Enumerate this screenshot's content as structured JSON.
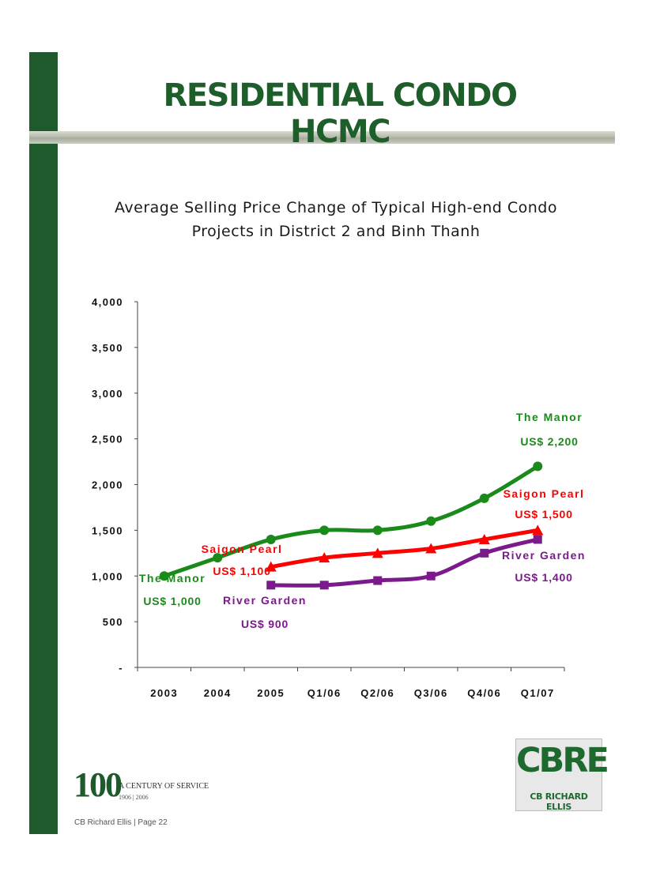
{
  "slide": {
    "title": "RESIDENTIAL CONDO HCMC"
  },
  "chart_data": {
    "type": "line",
    "title_line1": "Average Selling Price Change of Typical High-end Condo",
    "title_line2": "Projects in District 2 and Binh Thanh",
    "categories": [
      "2003",
      "2004",
      "2005",
      "Q1/06",
      "Q2/06",
      "Q3/06",
      "Q4/06",
      "Q1/07"
    ],
    "ylim": [
      0,
      4000
    ],
    "yticks": [
      0,
      500,
      1000,
      1500,
      2000,
      2500,
      3000,
      3500,
      4000
    ],
    "ytick_labels": [
      "-",
      "500",
      "1,000",
      "1,500",
      "2,000",
      "2,500",
      "3,000",
      "3,500",
      "4,000"
    ],
    "series": [
      {
        "name": "The Manor",
        "color": "#1a8a1a",
        "marker": "circle",
        "values": [
          1000,
          1200,
          1400,
          1500,
          1500,
          1600,
          1850,
          2200
        ],
        "start_label": [
          "The Manor",
          "US$ 1,000"
        ],
        "end_label": [
          "The Manor",
          "US$ 2,200"
        ]
      },
      {
        "name": "Saigon Pearl",
        "color": "#ff0000",
        "marker": "triangle",
        "values": [
          null,
          null,
          1100,
          1200,
          1250,
          1300,
          1400,
          1500
        ],
        "start_label": [
          "Saigon Pearl",
          "US$ 1,100"
        ],
        "end_label": [
          "Saigon Pearl",
          "US$ 1,500"
        ]
      },
      {
        "name": "River Garden",
        "color": "#7b1a8a",
        "marker": "square",
        "values": [
          null,
          null,
          900,
          900,
          950,
          1000,
          1250,
          1400
        ],
        "start_label": [
          "River Garden",
          "US$ 900"
        ],
        "end_label": [
          "River Garden",
          "US$ 1,400"
        ]
      }
    ]
  },
  "footer": {
    "century_number": "100",
    "century_text": "A CENTURY OF SERVICE",
    "century_years": "1906 | 2006",
    "page": "CB Richard Ellis | Page 22"
  },
  "logo": {
    "main": "CBRE",
    "sub": "CB RICHARD ELLIS"
  }
}
